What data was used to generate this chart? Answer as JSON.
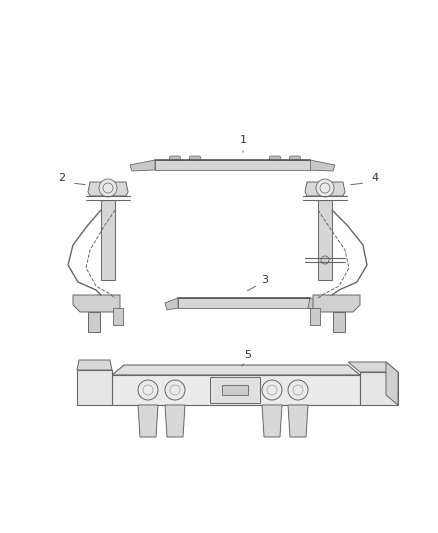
{
  "bg_color": "#ffffff",
  "line_color": "#666666",
  "label_color": "#333333",
  "figsize": [
    4.38,
    5.33
  ],
  "dpi": 100
}
